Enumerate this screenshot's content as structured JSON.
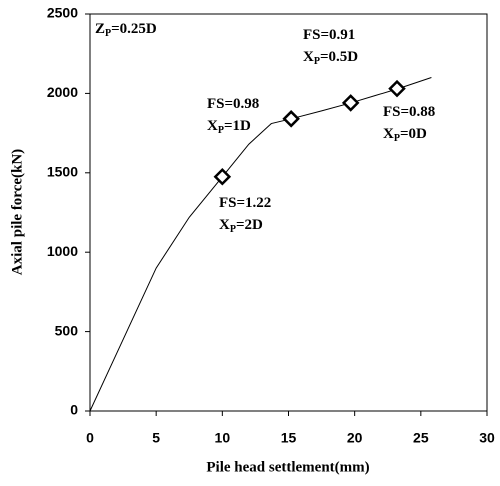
{
  "chart_data": {
    "type": "line",
    "x_label": "Pile head settlement(mm)",
    "y_label": "Axial pile force(kN)",
    "xlim": [
      0,
      30
    ],
    "xticks": [
      0,
      5,
      10,
      15,
      20,
      25,
      30
    ],
    "ylim": [
      0,
      2500
    ],
    "yticks": [
      0,
      500,
      1000,
      1500,
      2000,
      2500
    ],
    "color": "#000000",
    "x": [
      0,
      2.5,
      5,
      7.5,
      10,
      12,
      13.7,
      15.2,
      17.5,
      19.7,
      21.5,
      23.3,
      25.8
    ],
    "values": [
      0,
      450,
      900,
      1220,
      1475,
      1680,
      1810,
      1840,
      1890,
      1940,
      1985,
      2030,
      2100
    ],
    "markers": {
      "x": [
        10,
        15.2,
        19.7,
        23.2
      ],
      "values": [
        1475,
        1840,
        1940,
        2030
      ]
    },
    "annotations": [
      {
        "lines": [
          [
            "Z",
            "P",
            "=0.25D"
          ]
        ]
      },
      {
        "lines": [
          [
            "FS=0.98"
          ],
          [
            "X",
            "P",
            "=1D"
          ]
        ]
      },
      {
        "lines": [
          [
            "FS=0.91"
          ],
          [
            "X",
            "P",
            "=0.5D"
          ]
        ]
      },
      {
        "lines": [
          [
            "FS=0.88"
          ],
          [
            "X",
            "P",
            "=0D"
          ]
        ]
      },
      {
        "lines": [
          [
            "FS=1.22"
          ],
          [
            "X",
            "P",
            "=2D"
          ]
        ]
      }
    ]
  }
}
